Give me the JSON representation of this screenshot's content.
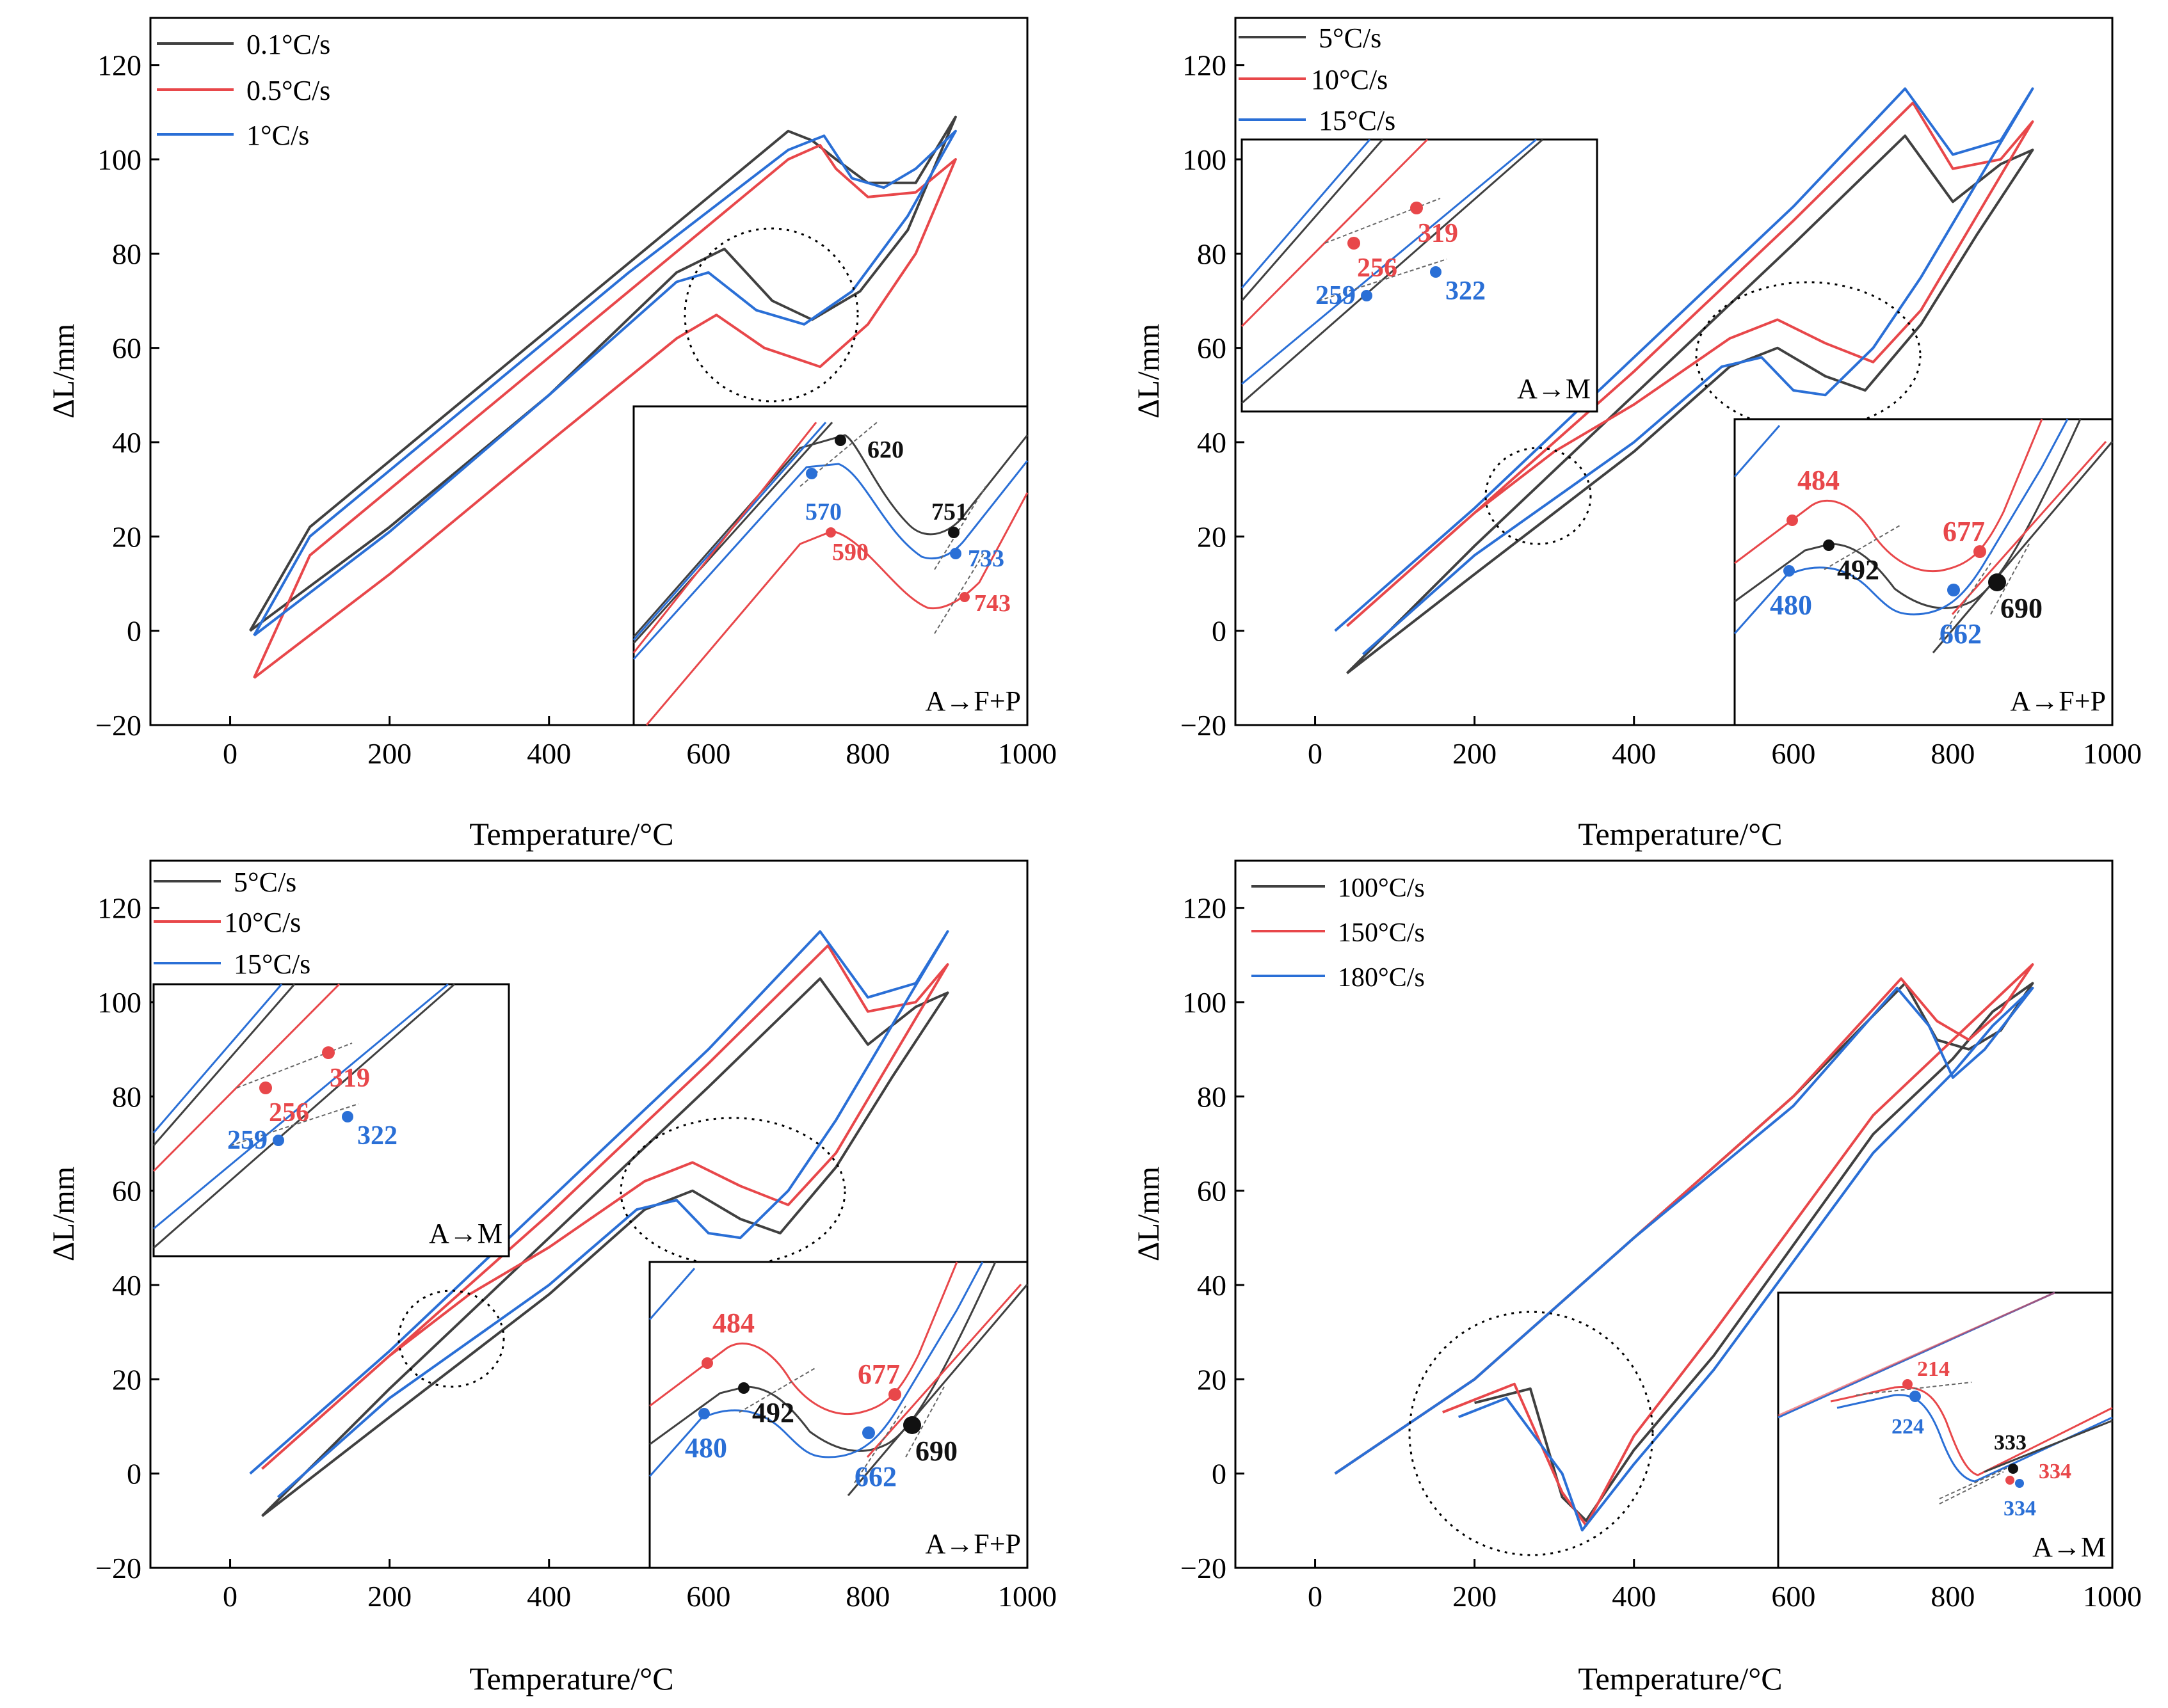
{
  "colors": {
    "black": "#404040",
    "red": "#e8474a",
    "blue": "#2a6fd6",
    "frame": "#000000"
  },
  "chart_data": [
    {
      "type": "line",
      "title": "",
      "xlabel": "Temperature/°C",
      "ylabel": "ΔL/mm",
      "xlim": [
        -100,
        1000
      ],
      "ylim": [
        -20,
        130
      ],
      "xticks": [
        "0",
        "200",
        "400",
        "600",
        "800",
        "1000"
      ],
      "yticks": [
        "−20",
        "0",
        "20",
        "40",
        "60",
        "80",
        "100",
        "120"
      ],
      "legend": [
        "0.1°C/s",
        "0.5°C/s",
        "1°C/s"
      ],
      "series": [
        {
          "name": "0.1°C/s",
          "color": "black",
          "x": [
            25,
            200,
            400,
            560,
            620,
            680,
            730,
            790,
            850,
            910,
            860,
            800,
            760,
            730,
            700,
            500,
            300,
            100,
            25
          ],
          "y": [
            0,
            22,
            50,
            76,
            81,
            70,
            66,
            72,
            85,
            109,
            95,
            95,
            100,
            104,
            106,
            78,
            50,
            22,
            0
          ]
        },
        {
          "name": "0.5°C/s",
          "color": "red",
          "x": [
            30,
            200,
            400,
            560,
            610,
            670,
            740,
            800,
            860,
            910,
            860,
            800,
            760,
            740,
            700,
            500,
            300,
            100,
            30
          ],
          "y": [
            -10,
            12,
            40,
            62,
            67,
            60,
            56,
            65,
            80,
            100,
            93,
            92,
            98,
            103,
            100,
            72,
            44,
            16,
            -10
          ]
        },
        {
          "name": "1°C/s",
          "color": "blue",
          "x": [
            30,
            200,
            400,
            560,
            600,
            660,
            720,
            780,
            850,
            910,
            860,
            820,
            780,
            745,
            700,
            500,
            300,
            100,
            30
          ],
          "y": [
            -1,
            21,
            50,
            74,
            76,
            68,
            65,
            72,
            88,
            106,
            98,
            94,
            96,
            105,
            102,
            76,
            48,
            20,
            -1
          ]
        }
      ],
      "inset": {
        "label": "A→F+P",
        "points": [
          {
            "label": "620",
            "color": "black"
          },
          {
            "label": "751",
            "color": "black"
          },
          {
            "label": "570",
            "color": "blue"
          },
          {
            "label": "733",
            "color": "blue"
          },
          {
            "label": "590",
            "color": "red"
          },
          {
            "label": "743",
            "color": "red"
          }
        ]
      }
    },
    {
      "type": "line",
      "xlabel": "Temperature/°C",
      "ylabel": "ΔL/mm",
      "xlim": [
        -100,
        1000
      ],
      "ylim": [
        -20,
        130
      ],
      "xticks": [
        "0",
        "200",
        "400",
        "600",
        "800",
        "1000"
      ],
      "yticks": [
        "−20",
        "0",
        "20",
        "40",
        "60",
        "80",
        "100",
        "120"
      ],
      "legend": [
        "5°C/s",
        "10°C/s",
        "15°C/s"
      ],
      "series": [
        {
          "name": "5°C/s",
          "color": "black",
          "x": [
            40,
            200,
            300,
            400,
            520,
            580,
            640,
            690,
            760,
            830,
            900,
            860,
            800,
            740,
            600,
            400,
            200,
            40
          ],
          "y": [
            -9,
            12,
            25,
            38,
            56,
            60,
            54,
            51,
            65,
            84,
            102,
            99,
            91,
            105,
            82,
            50,
            18,
            -9
          ]
        },
        {
          "name": "10°C/s",
          "color": "red",
          "x": [
            40,
            200,
            300,
            400,
            520,
            580,
            640,
            700,
            760,
            830,
            900,
            860,
            800,
            750,
            600,
            400,
            200,
            40
          ],
          "y": [
            1,
            25,
            38,
            48,
            62,
            66,
            61,
            57,
            68,
            88,
            108,
            100,
            98,
            112,
            87,
            55,
            25,
            1
          ]
        },
        {
          "name": "15°C/s",
          "color": "blue",
          "x": [
            60,
            200,
            300,
            400,
            510,
            560,
            600,
            640,
            700,
            760,
            830,
            900,
            860,
            800,
            740,
            600,
            400,
            200,
            25
          ],
          "y": [
            -5,
            16,
            28,
            40,
            56,
            58,
            51,
            50,
            60,
            75,
            95,
            115,
            104,
            101,
            115,
            90,
            58,
            26,
            0
          ]
        }
      ],
      "inset_am": {
        "label": "A→M",
        "points": [
          {
            "label": "256",
            "color": "red"
          },
          {
            "label": "319",
            "color": "red"
          },
          {
            "label": "259",
            "color": "blue"
          },
          {
            "label": "322",
            "color": "blue"
          }
        ]
      },
      "inset_afp": {
        "label": "A→F+P",
        "points": [
          {
            "label": "484",
            "color": "red"
          },
          {
            "label": "677",
            "color": "red"
          },
          {
            "label": "492",
            "color": "black"
          },
          {
            "label": "690",
            "color": "black"
          },
          {
            "label": "480",
            "color": "blue"
          },
          {
            "label": "662",
            "color": "blue"
          }
        ]
      }
    },
    {
      "type": "line",
      "xlabel": "Temperature/°C",
      "ylabel": "ΔL/mm",
      "xlim": [
        -100,
        1000
      ],
      "ylim": [
        -20,
        130
      ],
      "xticks": [
        "0",
        "200",
        "400",
        "600",
        "800",
        "1000"
      ],
      "yticks": [
        "−20",
        "0",
        "20",
        "40",
        "60",
        "80",
        "100",
        "120"
      ],
      "legend": [
        "5°C/s",
        "10°C/s",
        "15°C/s"
      ],
      "series": [
        {
          "name": "5°C/s",
          "color": "black",
          "x": [
            40,
            200,
            300,
            400,
            520,
            580,
            640,
            690,
            760,
            830,
            900,
            860,
            800,
            740,
            600,
            400,
            200,
            40
          ],
          "y": [
            -9,
            12,
            25,
            38,
            56,
            60,
            54,
            51,
            65,
            84,
            102,
            99,
            91,
            105,
            82,
            50,
            18,
            -9
          ]
        },
        {
          "name": "10°C/s",
          "color": "red",
          "x": [
            40,
            200,
            300,
            400,
            520,
            580,
            640,
            700,
            760,
            830,
            900,
            860,
            800,
            750,
            600,
            400,
            200,
            40
          ],
          "y": [
            1,
            25,
            38,
            48,
            62,
            66,
            61,
            57,
            68,
            88,
            108,
            100,
            98,
            112,
            87,
            55,
            25,
            1
          ]
        },
        {
          "name": "15°C/s",
          "color": "blue",
          "x": [
            60,
            200,
            300,
            400,
            510,
            560,
            600,
            640,
            700,
            760,
            830,
            900,
            860,
            800,
            740,
            600,
            400,
            200,
            25
          ],
          "y": [
            -5,
            16,
            28,
            40,
            56,
            58,
            51,
            50,
            60,
            75,
            95,
            115,
            104,
            101,
            115,
            90,
            58,
            26,
            0
          ]
        }
      ],
      "inset_am": {
        "label": "A→M",
        "points": [
          {
            "label": "256",
            "color": "red"
          },
          {
            "label": "319",
            "color": "red"
          },
          {
            "label": "259",
            "color": "blue"
          },
          {
            "label": "322",
            "color": "blue"
          }
        ]
      },
      "inset_afp": {
        "label": "A→F+P",
        "points": [
          {
            "label": "484",
            "color": "red"
          },
          {
            "label": "677",
            "color": "red"
          },
          {
            "label": "492",
            "color": "black"
          },
          {
            "label": "690",
            "color": "black"
          },
          {
            "label": "480",
            "color": "blue"
          },
          {
            "label": "662",
            "color": "blue"
          }
        ]
      }
    },
    {
      "type": "line",
      "xlabel": "Temperature/°C",
      "ylabel": "ΔL/mm",
      "xlim": [
        -100,
        1000
      ],
      "ylim": [
        -20,
        130
      ],
      "xticks": [
        "0",
        "200",
        "400",
        "600",
        "800",
        "1000"
      ],
      "yticks": [
        "−20",
        "0",
        "20",
        "40",
        "60",
        "80",
        "100",
        "120"
      ],
      "legend": [
        "100°C/s",
        "150°C/s",
        "180°C/s"
      ],
      "series": [
        {
          "name": "100°C/s",
          "color": "black",
          "x": [
            25,
            200,
            400,
            600,
            740,
            780,
            820,
            860,
            900,
            850,
            800,
            700,
            500,
            400,
            340,
            310,
            270,
            200
          ],
          "y": [
            0,
            20,
            50,
            80,
            104,
            92,
            90,
            94,
            104,
            98,
            88,
            72,
            25,
            5,
            -10,
            -5,
            18,
            15
          ]
        },
        {
          "name": "150°C/s",
          "color": "red",
          "x": [
            25,
            200,
            400,
            600,
            735,
            780,
            820,
            860,
            900,
            850,
            800,
            700,
            500,
            400,
            340,
            310,
            250,
            160
          ],
          "y": [
            0,
            20,
            50,
            80,
            105,
            96,
            92,
            98,
            108,
            100,
            92,
            76,
            30,
            8,
            -11,
            -4,
            19,
            13
          ]
        },
        {
          "name": "180°C/s",
          "color": "blue",
          "x": [
            25,
            200,
            400,
            600,
            730,
            770,
            800,
            840,
            900,
            850,
            800,
            700,
            500,
            400,
            335,
            310,
            240,
            180
          ],
          "y": [
            0,
            20,
            50,
            78,
            103,
            95,
            84,
            90,
            103,
            95,
            85,
            68,
            22,
            2,
            -12,
            0,
            16,
            12
          ]
        }
      ],
      "inset": {
        "label": "A→M",
        "points": [
          {
            "label": "214",
            "color": "red"
          },
          {
            "label": "224",
            "color": "blue"
          },
          {
            "label": "333",
            "color": "black"
          },
          {
            "label": "334",
            "color": "red"
          },
          {
            "label": "334",
            "color": "blue"
          }
        ]
      }
    }
  ]
}
